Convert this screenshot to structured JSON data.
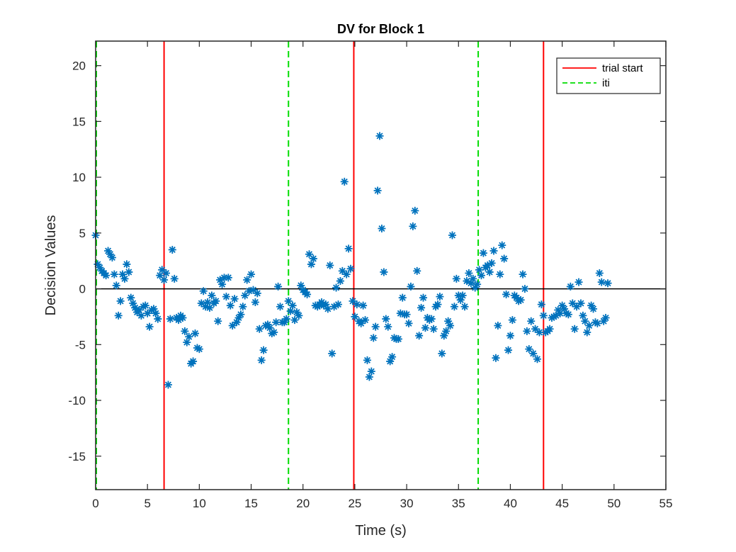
{
  "chart_data": {
    "type": "scatter",
    "title": "DV for Block 1",
    "xlabel": "Time (s)",
    "ylabel": "Decision Values",
    "xlim": [
      0,
      55
    ],
    "ylim": [
      -18,
      22.2
    ],
    "xticks": [
      0,
      5,
      10,
      15,
      20,
      25,
      30,
      35,
      40,
      45,
      50,
      55
    ],
    "yticks": [
      20,
      15,
      10,
      5,
      0,
      -5,
      -10,
      -15
    ],
    "marker": "asterisk",
    "marker_color": "#0072BD",
    "zero_line": 0,
    "vlines": [
      {
        "x": 0.0,
        "style": "iti"
      },
      {
        "x": 6.6,
        "style": "trial_start"
      },
      {
        "x": 18.6,
        "style": "iti"
      },
      {
        "x": 24.9,
        "style": "trial_start"
      },
      {
        "x": 36.9,
        "style": "iti"
      },
      {
        "x": 43.2,
        "style": "trial_start"
      }
    ],
    "legend": {
      "placement": "top-right",
      "entries": [
        {
          "key": "trial_start",
          "label": "trial start",
          "color": "#FF0000",
          "dash": "solid"
        },
        {
          "key": "iti",
          "label": "iti",
          "color": "#00DD00",
          "dash": "dashed"
        }
      ]
    },
    "points": [
      [
        0.0,
        4.8
      ],
      [
        0.2,
        2.2
      ],
      [
        0.4,
        1.9
      ],
      [
        0.6,
        1.6
      ],
      [
        0.8,
        1.4
      ],
      [
        1.0,
        1.2
      ],
      [
        1.2,
        3.4
      ],
      [
        1.4,
        3.1
      ],
      [
        1.6,
        2.8
      ],
      [
        1.8,
        1.3
      ],
      [
        2.0,
        0.3
      ],
      [
        2.2,
        -2.4
      ],
      [
        2.4,
        -1.1
      ],
      [
        2.6,
        1.3
      ],
      [
        2.8,
        0.9
      ],
      [
        3.0,
        2.2
      ],
      [
        3.2,
        1.5
      ],
      [
        3.4,
        -0.8
      ],
      [
        3.6,
        -1.3
      ],
      [
        3.8,
        -1.7
      ],
      [
        4.0,
        -2.1
      ],
      [
        4.2,
        -1.9
      ],
      [
        4.4,
        -2.4
      ],
      [
        4.6,
        -1.6
      ],
      [
        4.8,
        -1.5
      ],
      [
        5.0,
        -2.2
      ],
      [
        5.2,
        -3.4
      ],
      [
        5.4,
        -1.9
      ],
      [
        5.6,
        -1.8
      ],
      [
        5.8,
        -2.2
      ],
      [
        6.0,
        -2.7
      ],
      [
        6.2,
        1.2
      ],
      [
        6.4,
        1.7
      ],
      [
        6.6,
        0.8
      ],
      [
        6.8,
        1.4
      ],
      [
        7.0,
        -8.6
      ],
      [
        7.2,
        -2.7
      ],
      [
        7.4,
        3.5
      ],
      [
        7.6,
        0.9
      ],
      [
        7.8,
        -2.6
      ],
      [
        8.0,
        -2.8
      ],
      [
        8.2,
        -2.4
      ],
      [
        8.4,
        -2.6
      ],
      [
        8.6,
        -3.8
      ],
      [
        8.8,
        -4.8
      ],
      [
        9.0,
        -4.3
      ],
      [
        9.2,
        -6.7
      ],
      [
        9.4,
        -6.5
      ],
      [
        9.6,
        -4.0
      ],
      [
        9.8,
        -5.3
      ],
      [
        10.0,
        -5.4
      ],
      [
        10.2,
        -1.3
      ],
      [
        10.4,
        -0.2
      ],
      [
        10.6,
        -1.6
      ],
      [
        10.8,
        -1.2
      ],
      [
        11.0,
        -1.7
      ],
      [
        11.2,
        -0.6
      ],
      [
        11.4,
        -1.3
      ],
      [
        11.6,
        -1.1
      ],
      [
        11.8,
        -2.9
      ],
      [
        12.0,
        0.8
      ],
      [
        12.2,
        0.4
      ],
      [
        12.4,
        1.0
      ],
      [
        12.6,
        -0.7
      ],
      [
        12.8,
        1.0
      ],
      [
        13.0,
        -1.5
      ],
      [
        13.2,
        -3.3
      ],
      [
        13.4,
        -0.9
      ],
      [
        13.6,
        -3.0
      ],
      [
        13.8,
        -2.6
      ],
      [
        14.0,
        -2.3
      ],
      [
        14.2,
        -1.6
      ],
      [
        14.4,
        -0.6
      ],
      [
        14.6,
        0.8
      ],
      [
        14.8,
        -0.2
      ],
      [
        15.0,
        1.3
      ],
      [
        15.2,
        -0.1
      ],
      [
        15.4,
        -1.2
      ],
      [
        15.6,
        -0.4
      ],
      [
        15.8,
        -3.6
      ],
      [
        16.0,
        -6.4
      ],
      [
        16.2,
        -5.5
      ],
      [
        16.4,
        -3.3
      ],
      [
        16.6,
        -3.2
      ],
      [
        16.8,
        -3.5
      ],
      [
        17.0,
        -4.0
      ],
      [
        17.2,
        -3.9
      ],
      [
        17.4,
        -3.0
      ],
      [
        17.6,
        0.2
      ],
      [
        17.8,
        -1.6
      ],
      [
        18.0,
        -3.0
      ],
      [
        18.2,
        -3.0
      ],
      [
        18.4,
        -2.7
      ],
      [
        18.6,
        -1.1
      ],
      [
        18.8,
        -2.0
      ],
      [
        19.0,
        -1.5
      ],
      [
        19.2,
        -2.8
      ],
      [
        19.4,
        -2.1
      ],
      [
        19.6,
        -2.4
      ],
      [
        19.8,
        0.3
      ],
      [
        20.0,
        -0.1
      ],
      [
        20.2,
        -0.3
      ],
      [
        20.4,
        -0.5
      ],
      [
        20.6,
        3.1
      ],
      [
        20.8,
        2.2
      ],
      [
        21.0,
        2.7
      ],
      [
        21.2,
        -1.5
      ],
      [
        21.4,
        -1.6
      ],
      [
        21.6,
        -1.4
      ],
      [
        21.8,
        -1.2
      ],
      [
        22.0,
        -1.5
      ],
      [
        22.2,
        -1.4
      ],
      [
        22.4,
        -1.8
      ],
      [
        22.6,
        2.1
      ],
      [
        22.8,
        -5.8
      ],
      [
        23.0,
        -1.6
      ],
      [
        23.2,
        0.1
      ],
      [
        23.4,
        -1.4
      ],
      [
        23.6,
        0.7
      ],
      [
        23.8,
        1.6
      ],
      [
        24.0,
        9.6
      ],
      [
        24.2,
        1.3
      ],
      [
        24.4,
        3.6
      ],
      [
        24.6,
        1.8
      ],
      [
        24.8,
        -1.1
      ],
      [
        25.0,
        -2.5
      ],
      [
        25.2,
        -1.4
      ],
      [
        25.4,
        -2.9
      ],
      [
        25.6,
        -3.1
      ],
      [
        25.8,
        -1.5
      ],
      [
        26.0,
        -2.8
      ],
      [
        26.2,
        -6.4
      ],
      [
        26.4,
        -7.9
      ],
      [
        26.6,
        -7.4
      ],
      [
        26.8,
        -4.4
      ],
      [
        27.0,
        -3.4
      ],
      [
        27.2,
        8.8
      ],
      [
        27.4,
        13.7
      ],
      [
        27.6,
        5.4
      ],
      [
        27.8,
        1.5
      ],
      [
        28.0,
        -2.7
      ],
      [
        28.2,
        -3.4
      ],
      [
        28.4,
        -6.5
      ],
      [
        28.6,
        -6.1
      ],
      [
        28.8,
        -4.4
      ],
      [
        29.0,
        -4.5
      ],
      [
        29.2,
        -4.5
      ],
      [
        29.4,
        -2.2
      ],
      [
        29.6,
        -0.8
      ],
      [
        29.8,
        -2.3
      ],
      [
        30.0,
        -2.3
      ],
      [
        30.2,
        -3.1
      ],
      [
        30.4,
        0.2
      ],
      [
        30.6,
        5.6
      ],
      [
        30.8,
        7.0
      ],
      [
        31.0,
        1.6
      ],
      [
        31.2,
        -4.2
      ],
      [
        31.4,
        -1.7
      ],
      [
        31.6,
        -0.8
      ],
      [
        31.8,
        -3.5
      ],
      [
        32.0,
        -2.6
      ],
      [
        32.2,
        -2.8
      ],
      [
        32.4,
        -2.7
      ],
      [
        32.6,
        -3.6
      ],
      [
        32.8,
        -1.6
      ],
      [
        33.0,
        -1.4
      ],
      [
        33.2,
        -0.7
      ],
      [
        33.4,
        -5.8
      ],
      [
        33.6,
        -4.2
      ],
      [
        33.8,
        -3.8
      ],
      [
        34.0,
        -2.9
      ],
      [
        34.2,
        -3.3
      ],
      [
        34.4,
        4.8
      ],
      [
        34.6,
        -1.6
      ],
      [
        34.8,
        0.9
      ],
      [
        35.0,
        -0.6
      ],
      [
        35.2,
        -1.0
      ],
      [
        35.4,
        -0.6
      ],
      [
        35.6,
        -1.6
      ],
      [
        35.8,
        0.7
      ],
      [
        36.0,
        1.4
      ],
      [
        36.2,
        0.5
      ],
      [
        36.4,
        0.9
      ],
      [
        36.6,
        0.1
      ],
      [
        36.8,
        0.4
      ],
      [
        37.0,
        1.7
      ],
      [
        37.2,
        1.2
      ],
      [
        37.4,
        3.2
      ],
      [
        37.6,
        1.9
      ],
      [
        37.8,
        2.1
      ],
      [
        38.0,
        1.5
      ],
      [
        38.2,
        2.3
      ],
      [
        38.4,
        3.4
      ],
      [
        38.6,
        -6.2
      ],
      [
        38.8,
        -3.3
      ],
      [
        39.0,
        1.3
      ],
      [
        39.2,
        3.9
      ],
      [
        39.4,
        2.7
      ],
      [
        39.6,
        -0.5
      ],
      [
        39.8,
        -5.5
      ],
      [
        40.0,
        -4.2
      ],
      [
        40.2,
        -2.8
      ],
      [
        40.4,
        -0.6
      ],
      [
        40.6,
        -0.8
      ],
      [
        40.8,
        -1.1
      ],
      [
        41.0,
        -1.0
      ],
      [
        41.2,
        1.3
      ],
      [
        41.4,
        0.0
      ],
      [
        41.6,
        -3.8
      ],
      [
        41.8,
        -5.4
      ],
      [
        42.0,
        -2.9
      ],
      [
        42.2,
        -5.8
      ],
      [
        42.4,
        -3.6
      ],
      [
        42.6,
        -6.3
      ],
      [
        42.8,
        -3.9
      ],
      [
        43.0,
        -1.4
      ],
      [
        43.2,
        -2.4
      ],
      [
        43.4,
        -3.9
      ],
      [
        43.6,
        -3.8
      ],
      [
        43.8,
        -3.6
      ],
      [
        44.0,
        -2.6
      ],
      [
        44.2,
        -2.5
      ],
      [
        44.4,
        -2.4
      ],
      [
        44.6,
        -1.9
      ],
      [
        44.8,
        -2.2
      ],
      [
        45.0,
        -1.5
      ],
      [
        45.2,
        -1.8
      ],
      [
        45.4,
        -2.2
      ],
      [
        45.6,
        -2.3
      ],
      [
        45.8,
        0.2
      ],
      [
        46.0,
        -1.3
      ],
      [
        46.2,
        -3.6
      ],
      [
        46.4,
        -1.6
      ],
      [
        46.6,
        0.6
      ],
      [
        46.8,
        -1.3
      ],
      [
        47.0,
        -2.4
      ],
      [
        47.2,
        -2.9
      ],
      [
        47.4,
        -3.9
      ],
      [
        47.6,
        -3.3
      ],
      [
        47.8,
        -1.5
      ],
      [
        48.0,
        -1.8
      ],
      [
        48.2,
        -3.0
      ],
      [
        48.4,
        -3.1
      ],
      [
        48.6,
        1.4
      ],
      [
        48.8,
        0.6
      ],
      [
        49.0,
        -2.9
      ],
      [
        49.2,
        -2.6
      ],
      [
        49.4,
        0.5
      ]
    ]
  }
}
